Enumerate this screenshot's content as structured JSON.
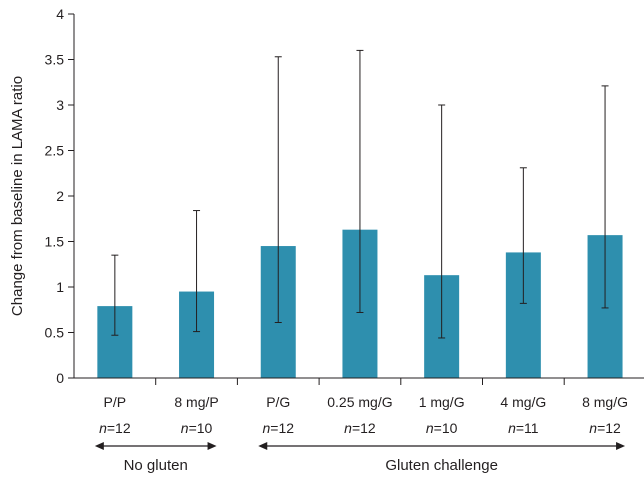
{
  "chart_data": {
    "type": "bar",
    "ylabel": "Change from baseline in LAMA ratio",
    "ylim": [
      0,
      4
    ],
    "yticks": [
      "0",
      "0.5",
      "1",
      "1.5",
      "2",
      "2.5",
      "3",
      "3.5",
      "4"
    ],
    "grid": false,
    "categories": [
      "P/P",
      "8 mg/P",
      "P/G",
      "0.25 mg/G",
      "1 mg/G",
      "4 mg/G",
      "8 mg/G"
    ],
    "n_labels": [
      {
        "italic": "n",
        "rest": "=12"
      },
      {
        "italic": "n",
        "rest": "=10"
      },
      {
        "italic": "n",
        "rest": "=12"
      },
      {
        "italic": "n",
        "rest": "=12"
      },
      {
        "italic": "n",
        "rest": "=10"
      },
      {
        "italic": "n",
        "rest": "=11"
      },
      {
        "italic": "n",
        "rest": "=12"
      }
    ],
    "values": [
      0.79,
      0.95,
      1.45,
      1.63,
      1.13,
      1.38,
      1.57
    ],
    "error_low": [
      0.47,
      0.51,
      0.61,
      0.72,
      0.44,
      0.82,
      0.77
    ],
    "error_high": [
      1.35,
      1.84,
      3.53,
      3.6,
      3.0,
      2.31,
      3.21
    ],
    "bar_color": "#2e8fae",
    "groups": [
      {
        "label": "No gluten",
        "start": 0,
        "end": 1
      },
      {
        "label": "Gluten challenge",
        "start": 2,
        "end": 6
      }
    ]
  }
}
